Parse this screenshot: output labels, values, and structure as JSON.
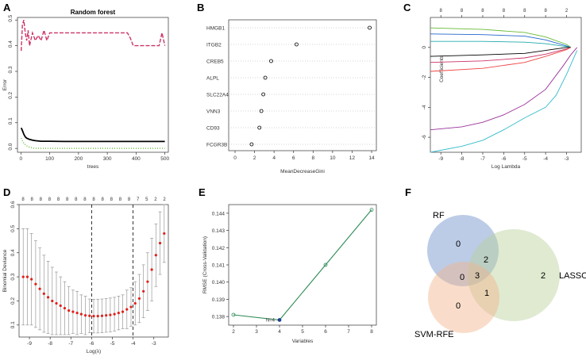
{
  "panels": {
    "a": "A",
    "b": "B",
    "c": "C",
    "d": "D",
    "e": "E",
    "f": "F"
  },
  "chart_data": [
    {
      "panel": "A",
      "type": "line",
      "title": "Random forest",
      "xlabel": "trees",
      "ylabel": "Error",
      "xlim": [
        0,
        500
      ],
      "ylim": [
        0,
        0.5
      ],
      "xticks": [
        "0",
        "100",
        "200",
        "300",
        "400",
        "500"
      ],
      "yticks": [
        "0.0",
        "0.1",
        "0.2",
        "0.3",
        "0.4",
        "0.5"
      ],
      "series": [
        {
          "color": "#000000",
          "dash": "solid",
          "x": [
            1,
            5,
            10,
            15,
            20,
            30,
            40,
            50,
            70,
            100,
            150,
            200,
            300,
            400,
            500
          ],
          "y": [
            0.08,
            0.07,
            0.055,
            0.045,
            0.04,
            0.035,
            0.032,
            0.03,
            0.028,
            0.028,
            0.027,
            0.027,
            0.027,
            0.027,
            0.027
          ]
        },
        {
          "color": "#cc3366",
          "dash": "dashed",
          "x": [
            1,
            5,
            10,
            15,
            20,
            25,
            30,
            40,
            50,
            60,
            70,
            80,
            90,
            100,
            120,
            150,
            200,
            250,
            300,
            350,
            370,
            380,
            390,
            400,
            420,
            450,
            480,
            490,
            500
          ],
          "y": [
            0.38,
            0.48,
            0.5,
            0.45,
            0.42,
            0.46,
            0.4,
            0.45,
            0.42,
            0.44,
            0.42,
            0.46,
            0.42,
            0.45,
            0.45,
            0.45,
            0.45,
            0.45,
            0.45,
            0.45,
            0.45,
            0.43,
            0.4,
            0.4,
            0.4,
            0.4,
            0.4,
            0.45,
            0.4
          ]
        },
        {
          "color": "#66bb33",
          "dash": "dotted",
          "x": [
            1,
            5,
            10,
            15,
            20,
            30,
            50,
            100,
            200,
            300,
            400,
            500
          ],
          "y": [
            0.04,
            0.03,
            0.02,
            0.015,
            0.01,
            0.005,
            0.0,
            0.0,
            0.0,
            0.0,
            0.0,
            0.0
          ]
        }
      ]
    },
    {
      "panel": "B",
      "type": "scatter",
      "xlabel": "MeanDecreaseGini",
      "xlim": [
        0,
        14
      ],
      "xticks": [
        "0",
        "2",
        "4",
        "6",
        "8",
        "10",
        "12",
        "14"
      ],
      "categories": [
        "HMGB1",
        "ITGB2",
        "CREB5",
        "ALPL",
        "SLC22A4",
        "VNN3",
        "CD93",
        "FCGR3B"
      ],
      "values": [
        13.8,
        6.3,
        3.7,
        3.1,
        2.9,
        2.7,
        2.5,
        1.7
      ]
    },
    {
      "panel": "C",
      "type": "line",
      "xlabel": "Log Lambda",
      "ylabel": "Coefficients",
      "xlim": [
        -9.5,
        -2.3
      ],
      "ylim": [
        -7,
        2
      ],
      "xticks": [
        "-9",
        "-8",
        "-7",
        "-6",
        "-5",
        "-4",
        "-3"
      ],
      "yticks": [
        "-6",
        "-4",
        "-2",
        "0"
      ],
      "top_ticks": [
        "8",
        "8",
        "8",
        "8",
        "8",
        "8",
        "2"
      ],
      "series": [
        {
          "color": "#66bb33",
          "x": [
            -9.5,
            -7,
            -5,
            -4,
            -3,
            -2.8
          ],
          "y": [
            1.3,
            1.2,
            1.0,
            0.7,
            0.2,
            0
          ]
        },
        {
          "color": "#2266cc",
          "x": [
            -9.5,
            -7,
            -5,
            -4,
            -3,
            -2.8
          ],
          "y": [
            0.9,
            0.85,
            0.75,
            0.5,
            0.1,
            0
          ]
        },
        {
          "color": "#22aaaa",
          "x": [
            -9.5,
            -7,
            -5,
            -4,
            -3,
            -2.8
          ],
          "y": [
            0.4,
            0.4,
            0.35,
            0.25,
            0.05,
            0
          ]
        },
        {
          "color": "#000000",
          "x": [
            -9.5,
            -7,
            -5,
            -4,
            -3,
            -2.8
          ],
          "y": [
            -0.6,
            -0.5,
            -0.4,
            -0.2,
            0,
            0
          ]
        },
        {
          "color": "#cc3366",
          "x": [
            -9.5,
            -7,
            -5,
            -4,
            -3,
            -2.8
          ],
          "y": [
            -1.0,
            -0.9,
            -0.7,
            -0.45,
            -0.1,
            0
          ]
        },
        {
          "color": "#ee4444",
          "x": [
            -9.5,
            -7,
            -5,
            -4,
            -3,
            -2.8
          ],
          "y": [
            -1.6,
            -1.4,
            -1.0,
            -0.6,
            -0.15,
            0
          ]
        },
        {
          "color": "#993399",
          "x": [
            -9.5,
            -8,
            -7,
            -6,
            -5,
            -4,
            -3.2,
            -2.8,
            -2.5
          ],
          "y": [
            -5.5,
            -5.3,
            -5.0,
            -4.5,
            -3.8,
            -2.8,
            -1.3,
            -0.5,
            0
          ]
        },
        {
          "color": "#33bbcc",
          "x": [
            -9.5,
            -8,
            -7,
            -6,
            -5,
            -4,
            -3.5,
            -3,
            -2.5
          ],
          "y": [
            -7.0,
            -6.6,
            -6.2,
            -5.5,
            -4.7,
            -4.0,
            -3.2,
            -1.8,
            -0.2
          ]
        }
      ]
    },
    {
      "panel": "D",
      "type": "scatter",
      "xlabel": "Log(λ)",
      "ylabel": "Binomial Deviance",
      "xlim": [
        -9.5,
        -2.3
      ],
      "ylim": [
        0.05,
        0.6
      ],
      "xticks": [
        "-9",
        "-8",
        "-7",
        "-6",
        "-5",
        "-4",
        "-3"
      ],
      "yticks": [
        "0.1",
        "0.2",
        "0.3",
        "0.4",
        "0.5",
        "0.6"
      ],
      "top_ticks": [
        "8",
        "8",
        "8",
        "8",
        "8",
        "8",
        "8",
        "8",
        "8",
        "8",
        "8",
        "8",
        "8",
        "7",
        "5",
        "2",
        "2"
      ],
      "vlines": [
        -6.0,
        -4.0
      ],
      "points": [
        {
          "x": -9.3,
          "y": 0.3,
          "err": 0.2
        },
        {
          "x": -9.1,
          "y": 0.3,
          "err": 0.2
        },
        {
          "x": -8.9,
          "y": 0.29,
          "err": 0.19
        },
        {
          "x": -8.7,
          "y": 0.27,
          "err": 0.18
        },
        {
          "x": -8.5,
          "y": 0.25,
          "err": 0.17
        },
        {
          "x": -8.3,
          "y": 0.23,
          "err": 0.16
        },
        {
          "x": -8.1,
          "y": 0.215,
          "err": 0.15
        },
        {
          "x": -7.9,
          "y": 0.2,
          "err": 0.14
        },
        {
          "x": -7.7,
          "y": 0.19,
          "err": 0.13
        },
        {
          "x": -7.5,
          "y": 0.18,
          "err": 0.12
        },
        {
          "x": -7.3,
          "y": 0.17,
          "err": 0.11
        },
        {
          "x": -7.1,
          "y": 0.16,
          "err": 0.1
        },
        {
          "x": -6.9,
          "y": 0.155,
          "err": 0.09
        },
        {
          "x": -6.7,
          "y": 0.15,
          "err": 0.09
        },
        {
          "x": -6.5,
          "y": 0.145,
          "err": 0.08
        },
        {
          "x": -6.3,
          "y": 0.14,
          "err": 0.08
        },
        {
          "x": -6.1,
          "y": 0.138,
          "err": 0.07
        },
        {
          "x": -5.9,
          "y": 0.137,
          "err": 0.07
        },
        {
          "x": -5.7,
          "y": 0.137,
          "err": 0.07
        },
        {
          "x": -5.5,
          "y": 0.138,
          "err": 0.07
        },
        {
          "x": -5.3,
          "y": 0.14,
          "err": 0.07
        },
        {
          "x": -5.1,
          "y": 0.142,
          "err": 0.07
        },
        {
          "x": -4.9,
          "y": 0.145,
          "err": 0.07
        },
        {
          "x": -4.7,
          "y": 0.15,
          "err": 0.07
        },
        {
          "x": -4.5,
          "y": 0.155,
          "err": 0.07
        },
        {
          "x": -4.3,
          "y": 0.165,
          "err": 0.08
        },
        {
          "x": -4.1,
          "y": 0.175,
          "err": 0.08
        },
        {
          "x": -3.9,
          "y": 0.19,
          "err": 0.09
        },
        {
          "x": -3.7,
          "y": 0.21,
          "err": 0.1
        },
        {
          "x": -3.5,
          "y": 0.24,
          "err": 0.11
        },
        {
          "x": -3.3,
          "y": 0.28,
          "err": 0.12
        },
        {
          "x": -3.1,
          "y": 0.33,
          "err": 0.13
        },
        {
          "x": -2.9,
          "y": 0.39,
          "err": 0.13
        },
        {
          "x": -2.7,
          "y": 0.44,
          "err": 0.13
        },
        {
          "x": -2.5,
          "y": 0.48,
          "err": 0.12
        }
      ]
    },
    {
      "panel": "E",
      "type": "line",
      "xlabel": "Variables",
      "ylabel": "RMSE (Cross-Validation)",
      "xlim": [
        2,
        8
      ],
      "ylim": [
        0.1375,
        0.1445
      ],
      "xticks": [
        "2",
        "3",
        "4",
        "5",
        "6",
        "7",
        "8"
      ],
      "yticks": [
        "0.138",
        "0.139",
        "0.140",
        "0.141",
        "0.142",
        "0.143",
        "0.144"
      ],
      "x": [
        2,
        4,
        6,
        8
      ],
      "y": [
        0.1381,
        0.1378,
        0.141,
        0.1442
      ],
      "best_label": "N=4",
      "line_color": "#2e8b57"
    },
    {
      "panel": "F",
      "type": "venn",
      "sets": [
        {
          "name": "RF",
          "color": "#6b8fc9"
        },
        {
          "name": "LASSO",
          "color": "#b8d19a"
        },
        {
          "name": "SVM-RFE",
          "color": "#f2b48a"
        }
      ],
      "regions": {
        "rf_only": "0",
        "lasso_only": "2",
        "svm_only": "0",
        "rf_lasso": "2",
        "rf_svm": "0",
        "lasso_svm": "1",
        "all": "3"
      }
    }
  ]
}
